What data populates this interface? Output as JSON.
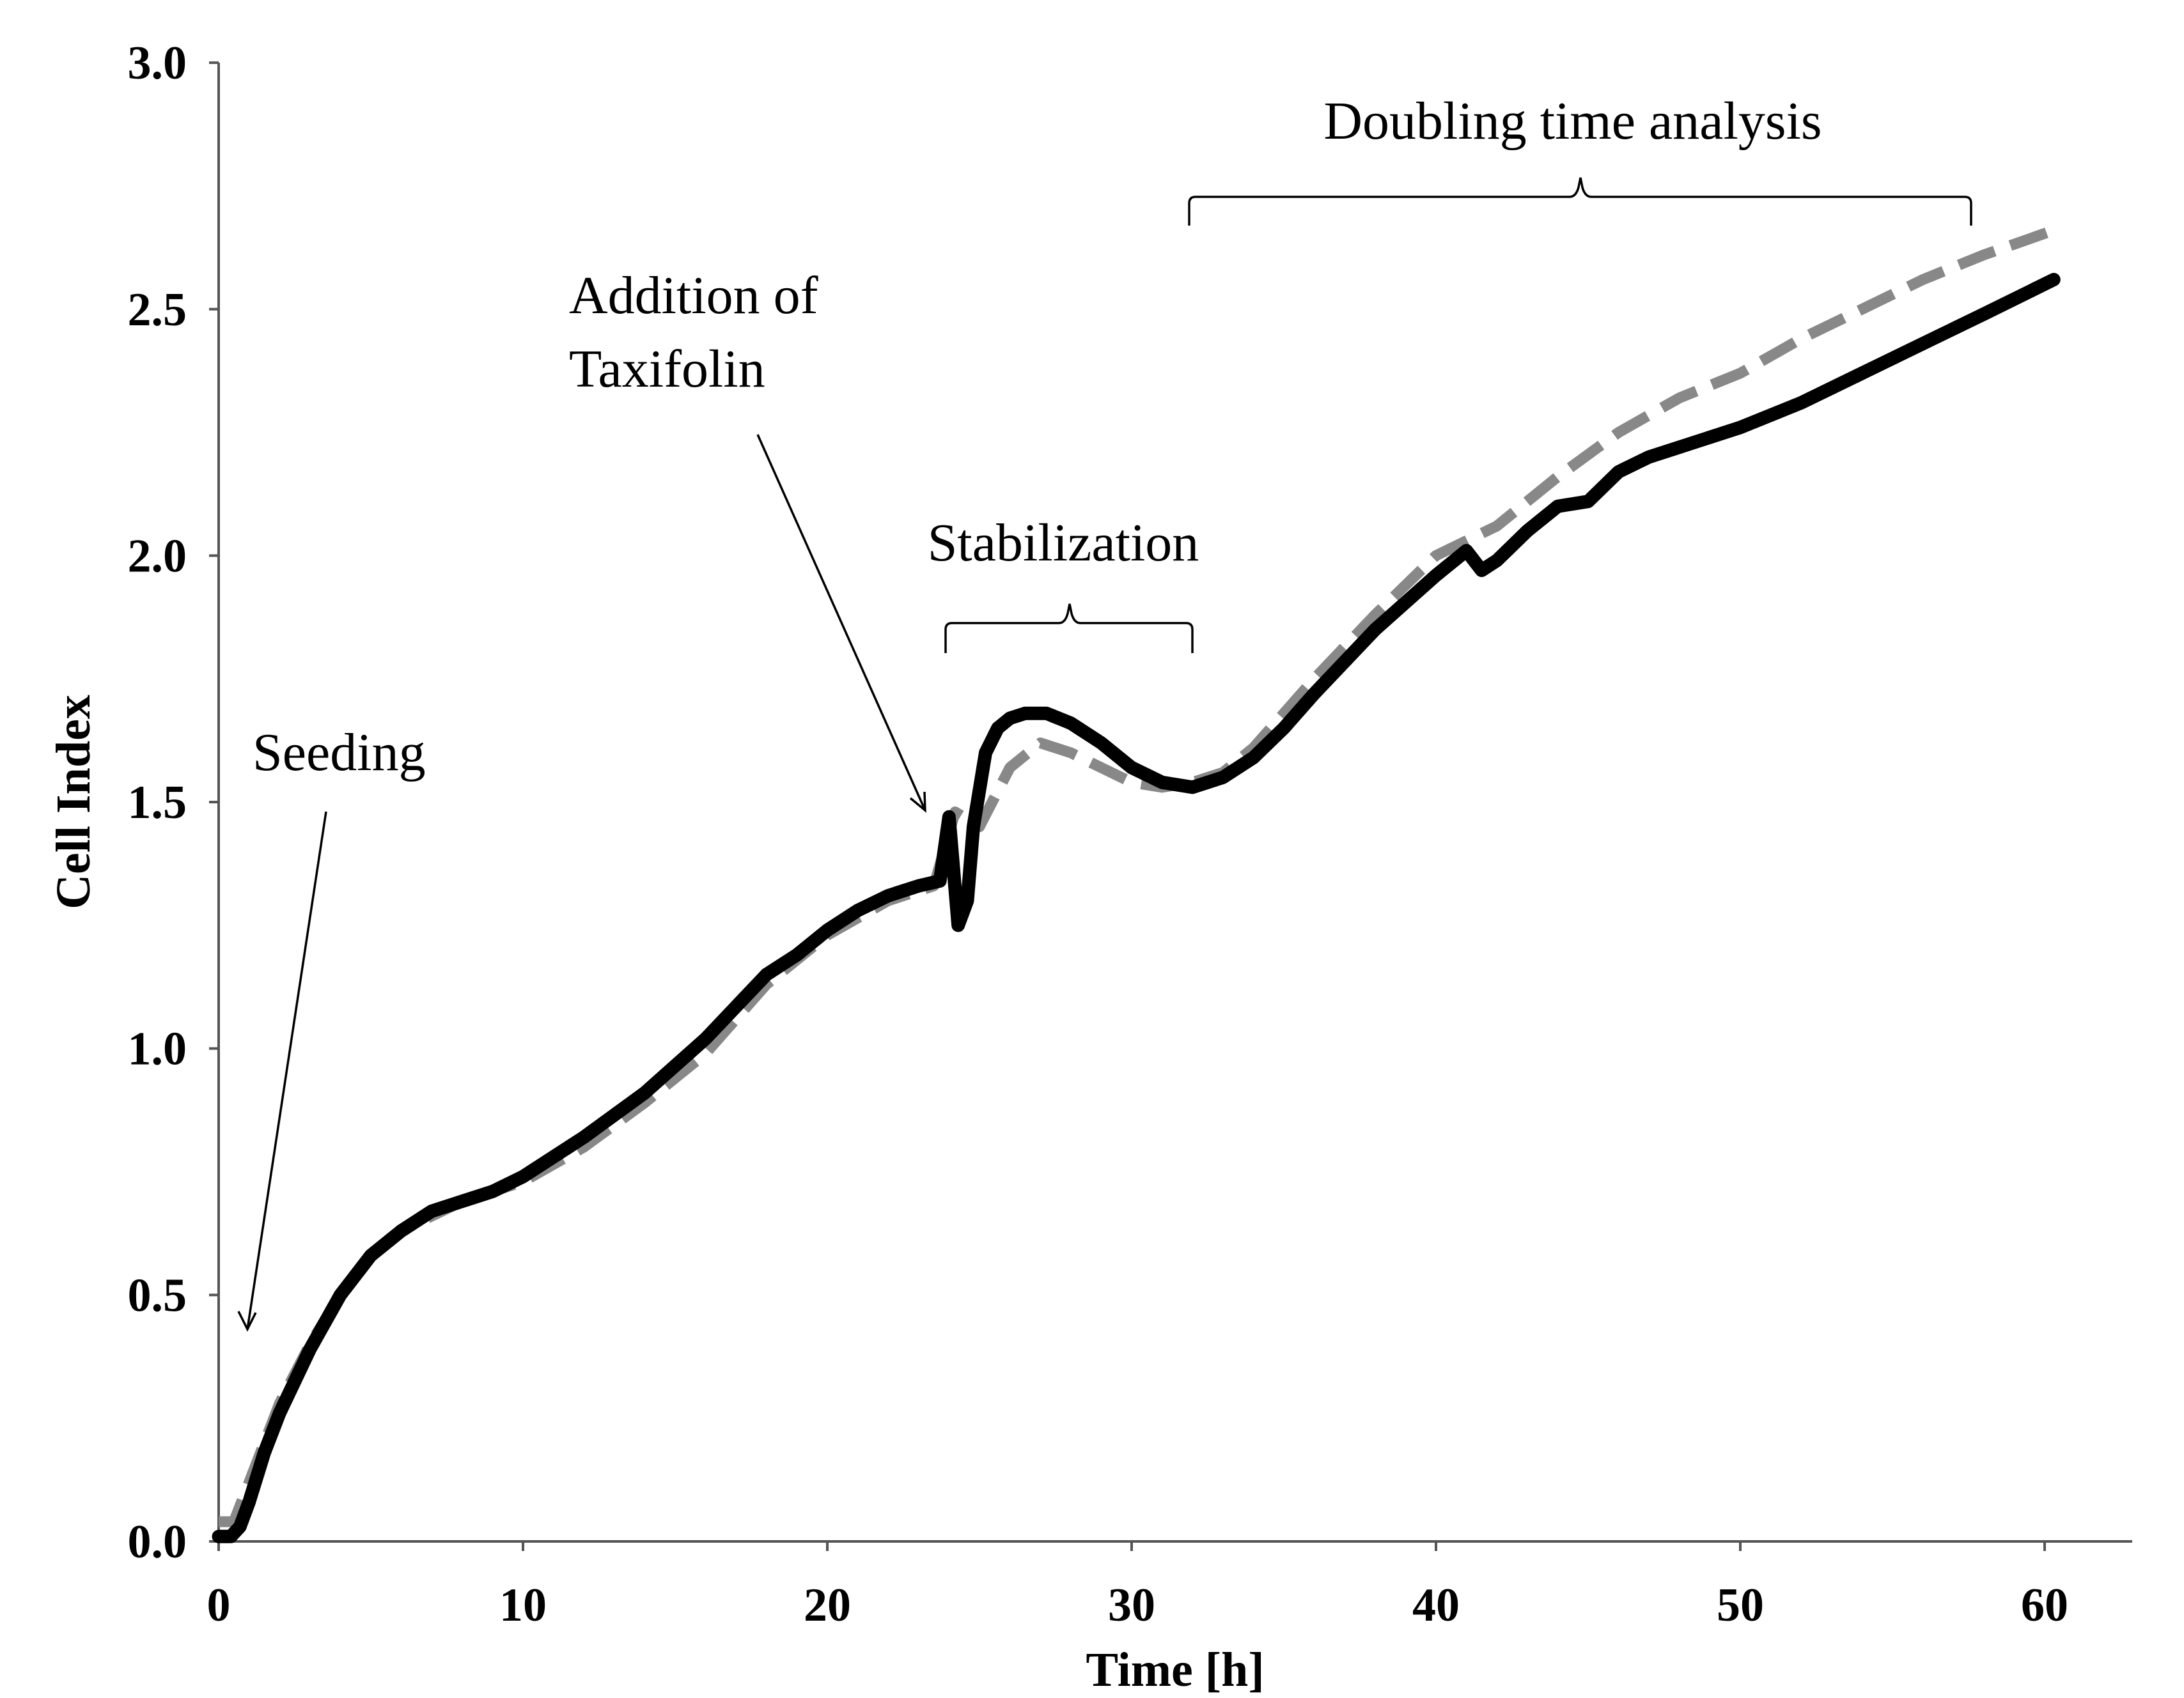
{
  "chart_data": {
    "type": "line",
    "title": "",
    "xlabel": "Time [h]",
    "ylabel": "Cell Index",
    "xlim": [
      0,
      63
    ],
    "ylim": [
      0,
      3
    ],
    "x_ticks": [
      0,
      10,
      20,
      30,
      40,
      50,
      60
    ],
    "y_ticks": [
      "0.0",
      "0.5",
      "1.0",
      "1.5",
      "2.0",
      "2.5",
      "3.0"
    ],
    "grid": false,
    "legend": null,
    "series": [
      {
        "name": "gray dashed",
        "style": "dashed",
        "color": "#888888",
        "x": [
          0,
          0.5,
          1,
          2,
          3,
          4,
          5,
          6,
          7,
          8,
          9,
          10,
          12,
          14,
          16,
          18,
          20,
          22,
          23.5,
          24.2,
          25,
          26,
          27,
          28,
          29,
          30,
          31,
          32,
          33,
          34,
          36,
          38,
          40,
          42,
          44,
          46,
          48,
          50,
          52,
          54,
          56,
          58,
          60.3
        ],
        "y": [
          0.04,
          0.04,
          0.12,
          0.28,
          0.4,
          0.5,
          0.58,
          0.63,
          0.66,
          0.69,
          0.71,
          0.73,
          0.8,
          0.89,
          0.99,
          1.13,
          1.23,
          1.3,
          1.33,
          1.48,
          1.45,
          1.57,
          1.62,
          1.6,
          1.57,
          1.54,
          1.53,
          1.54,
          1.56,
          1.61,
          1.75,
          1.88,
          2.0,
          2.06,
          2.16,
          2.25,
          2.32,
          2.37,
          2.44,
          2.5,
          2.56,
          2.61,
          2.66
        ]
      },
      {
        "name": "black solid",
        "style": "solid",
        "color": "#000000",
        "x": [
          0,
          0.4,
          0.7,
          1,
          1.5,
          2,
          3,
          4,
          5,
          6,
          7,
          8,
          9,
          10,
          12,
          14,
          16,
          18,
          19,
          20,
          21,
          22,
          23,
          23.7,
          24.0,
          24.3,
          24.6,
          24.8,
          25.2,
          25.6,
          26.0,
          26.5,
          27.2,
          28,
          29,
          30,
          31,
          32,
          33,
          34,
          35,
          36,
          38,
          40,
          41,
          41.5,
          42,
          43,
          44,
          45,
          46,
          47,
          48,
          50,
          52,
          54,
          56,
          58,
          60.3
        ],
        "y": [
          0.01,
          0.01,
          0.03,
          0.08,
          0.18,
          0.26,
          0.39,
          0.5,
          0.58,
          0.63,
          0.67,
          0.69,
          0.71,
          0.74,
          0.82,
          0.91,
          1.02,
          1.15,
          1.19,
          1.24,
          1.28,
          1.31,
          1.33,
          1.34,
          1.47,
          1.25,
          1.3,
          1.45,
          1.6,
          1.65,
          1.67,
          1.68,
          1.68,
          1.66,
          1.62,
          1.57,
          1.54,
          1.53,
          1.55,
          1.59,
          1.65,
          1.72,
          1.85,
          1.96,
          2.01,
          1.97,
          1.99,
          2.05,
          2.1,
          2.11,
          2.17,
          2.2,
          2.22,
          2.26,
          2.31,
          2.37,
          2.43,
          2.49,
          2.56
        ]
      }
    ],
    "annotations": [
      {
        "text": "Seeding"
      },
      {
        "text_lines": [
          "Addition of",
          "Taxifolin"
        ]
      },
      {
        "text": "Stabilization",
        "span": [
          24,
          32
        ]
      },
      {
        "text": "Doubling time analysis",
        "span": [
          32,
          57.7
        ]
      }
    ]
  }
}
